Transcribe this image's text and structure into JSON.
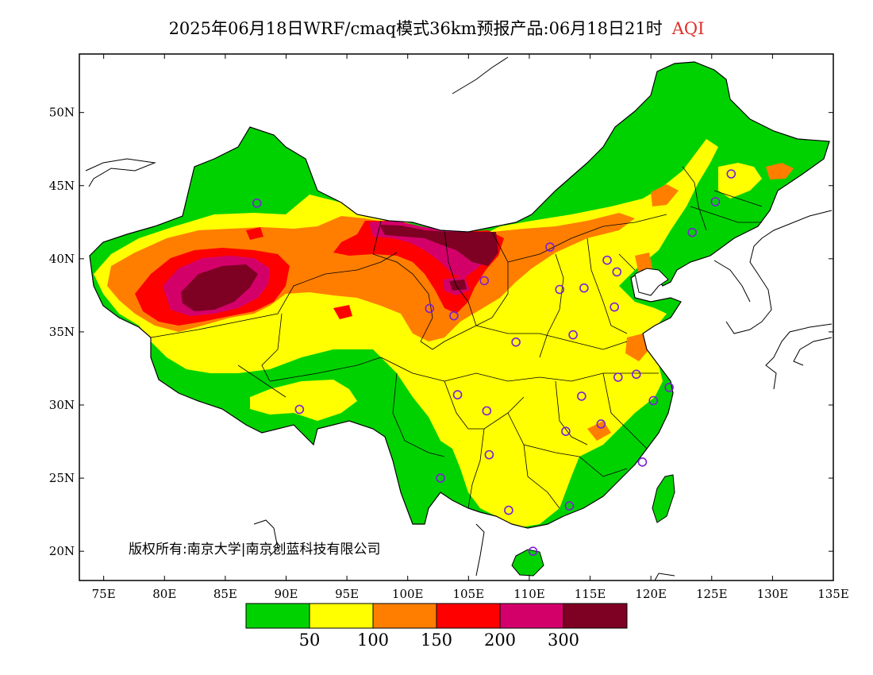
{
  "header": {
    "title": "2025年06月18日WRF/cmaq模式36km预报产品:06月18日21时",
    "variable": "AQI",
    "variable_color": "#e0302a"
  },
  "map": {
    "lon_range": [
      73,
      135
    ],
    "lat_range": [
      18,
      54
    ],
    "x_ticks": [
      "75E",
      "80E",
      "85E",
      "90E",
      "95E",
      "100E",
      "105E",
      "110E",
      "115E",
      "120E",
      "125E",
      "130E",
      "135E"
    ],
    "y_ticks": [
      "20N",
      "25N",
      "30N",
      "35N",
      "40N",
      "45N",
      "50N"
    ],
    "copyright": "版权所有:南京大学|南京创蓝科技有限公司"
  },
  "legend": {
    "colors": [
      "#00d200",
      "#ffff00",
      "#ff7e00",
      "#ff0000",
      "#d4006a",
      "#7e0023"
    ],
    "labels": [
      "50",
      "100",
      "150",
      "200",
      "300"
    ]
  },
  "stations": [
    {
      "lon": 87.6,
      "lat": 43.8
    },
    {
      "lon": 91.1,
      "lat": 29.7
    },
    {
      "lon": 101.8,
      "lat": 36.6
    },
    {
      "lon": 103.8,
      "lat": 36.1
    },
    {
      "lon": 106.3,
      "lat": 38.5
    },
    {
      "lon": 111.7,
      "lat": 40.8
    },
    {
      "lon": 112.5,
      "lat": 37.9
    },
    {
      "lon": 114.5,
      "lat": 38.0
    },
    {
      "lon": 116.4,
      "lat": 39.9
    },
    {
      "lon": 117.2,
      "lat": 39.1
    },
    {
      "lon": 117.0,
      "lat": 36.7
    },
    {
      "lon": 113.6,
      "lat": 34.8
    },
    {
      "lon": 108.9,
      "lat": 34.3
    },
    {
      "lon": 104.1,
      "lat": 30.7
    },
    {
      "lon": 106.5,
      "lat": 29.6
    },
    {
      "lon": 106.7,
      "lat": 26.6
    },
    {
      "lon": 102.7,
      "lat": 25.0
    },
    {
      "lon": 108.3,
      "lat": 22.8
    },
    {
      "lon": 113.3,
      "lat": 23.1
    },
    {
      "lon": 110.3,
      "lat": 20.0
    },
    {
      "lon": 119.3,
      "lat": 26.1
    },
    {
      "lon": 115.9,
      "lat": 28.7
    },
    {
      "lon": 113.0,
      "lat": 28.2
    },
    {
      "lon": 114.3,
      "lat": 30.6
    },
    {
      "lon": 117.3,
      "lat": 31.9
    },
    {
      "lon": 118.8,
      "lat": 32.1
    },
    {
      "lon": 120.2,
      "lat": 30.3
    },
    {
      "lon": 121.5,
      "lat": 31.2
    },
    {
      "lon": 123.4,
      "lat": 41.8
    },
    {
      "lon": 125.3,
      "lat": 43.9
    },
    {
      "lon": 126.6,
      "lat": 45.8
    }
  ]
}
